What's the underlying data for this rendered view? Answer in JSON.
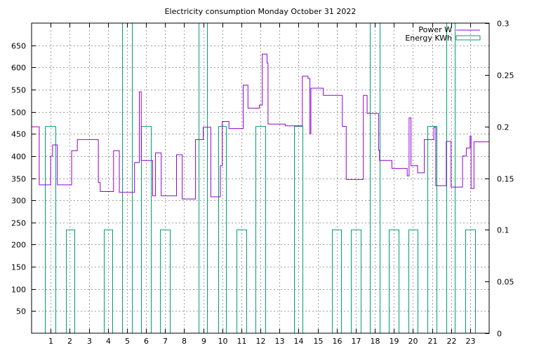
{
  "chart_data": {
    "type": "line",
    "title": "Electricity consumption Monday October 31 2022",
    "xlabel": "",
    "ylabel": "",
    "x_range": [
      0,
      24
    ],
    "x_ticks": [
      1,
      2,
      3,
      4,
      5,
      6,
      7,
      8,
      9,
      10,
      11,
      12,
      13,
      14,
      15,
      16,
      17,
      18,
      19,
      20,
      21,
      22,
      23
    ],
    "y_left_range": [
      0,
      700
    ],
    "y_left_ticks": [
      50,
      100,
      150,
      200,
      250,
      300,
      350,
      400,
      450,
      500,
      550,
      600,
      650
    ],
    "y_right_range": [
      0,
      0.3
    ],
    "y_right_ticks": [
      "0",
      "0.05",
      "0.1",
      "0.15",
      "0.2",
      "0.25",
      "0.3"
    ],
    "grid": true,
    "legend_position": "top-right",
    "series": [
      {
        "name": "Power W",
        "color": "#9400d3",
        "axis": "left",
        "points": [
          [
            0.0,
            466
          ],
          [
            0.4,
            466
          ],
          [
            0.4,
            335
          ],
          [
            1.0,
            335
          ],
          [
            1.0,
            400
          ],
          [
            1.1,
            400
          ],
          [
            1.1,
            425
          ],
          [
            1.35,
            425
          ],
          [
            1.35,
            335
          ],
          [
            2.1,
            335
          ],
          [
            2.1,
            412
          ],
          [
            2.4,
            412
          ],
          [
            2.4,
            437
          ],
          [
            3.5,
            437
          ],
          [
            3.5,
            340
          ],
          [
            3.6,
            340
          ],
          [
            3.6,
            320
          ],
          [
            4.3,
            320
          ],
          [
            4.3,
            412
          ],
          [
            4.6,
            412
          ],
          [
            4.6,
            318
          ],
          [
            5.4,
            318
          ],
          [
            5.4,
            385
          ],
          [
            5.65,
            385
          ],
          [
            5.65,
            545
          ],
          [
            5.75,
            545
          ],
          [
            5.75,
            390
          ],
          [
            6.35,
            390
          ],
          [
            6.35,
            310
          ],
          [
            6.5,
            310
          ],
          [
            6.5,
            407
          ],
          [
            6.8,
            407
          ],
          [
            6.8,
            310
          ],
          [
            7.6,
            310
          ],
          [
            7.6,
            403
          ],
          [
            7.9,
            403
          ],
          [
            7.9,
            303
          ],
          [
            8.6,
            303
          ],
          [
            8.6,
            437
          ],
          [
            9.0,
            437
          ],
          [
            9.0,
            465
          ],
          [
            9.4,
            465
          ],
          [
            9.4,
            308
          ],
          [
            9.9,
            308
          ],
          [
            9.9,
            378
          ],
          [
            10.0,
            378
          ],
          [
            10.0,
            478
          ],
          [
            10.35,
            478
          ],
          [
            10.35,
            462
          ],
          [
            11.1,
            462
          ],
          [
            11.1,
            560
          ],
          [
            11.35,
            560
          ],
          [
            11.35,
            508
          ],
          [
            11.95,
            508
          ],
          [
            11.95,
            515
          ],
          [
            12.1,
            515
          ],
          [
            12.1,
            630
          ],
          [
            12.35,
            630
          ],
          [
            12.35,
            610
          ],
          [
            12.4,
            610
          ],
          [
            12.4,
            472
          ],
          [
            13.3,
            472
          ],
          [
            13.3,
            468
          ],
          [
            14.2,
            468
          ],
          [
            14.2,
            580
          ],
          [
            14.5,
            580
          ],
          [
            14.5,
            575
          ],
          [
            14.6,
            575
          ],
          [
            14.6,
            450
          ],
          [
            14.65,
            450
          ],
          [
            14.65,
            553
          ],
          [
            15.3,
            553
          ],
          [
            15.3,
            537
          ],
          [
            16.3,
            537
          ],
          [
            16.3,
            467
          ],
          [
            16.5,
            467
          ],
          [
            16.5,
            347
          ],
          [
            17.4,
            347
          ],
          [
            17.4,
            537
          ],
          [
            17.6,
            537
          ],
          [
            17.6,
            496
          ],
          [
            18.2,
            496
          ],
          [
            18.2,
            413
          ],
          [
            18.25,
            413
          ],
          [
            18.25,
            390
          ],
          [
            18.9,
            390
          ],
          [
            18.9,
            372
          ],
          [
            19.7,
            372
          ],
          [
            19.7,
            355
          ],
          [
            19.8,
            355
          ],
          [
            19.8,
            486
          ],
          [
            19.9,
            486
          ],
          [
            19.9,
            378
          ],
          [
            20.25,
            378
          ],
          [
            20.25,
            362
          ],
          [
            20.6,
            362
          ],
          [
            20.6,
            437
          ],
          [
            21.1,
            437
          ],
          [
            21.1,
            465
          ],
          [
            21.2,
            465
          ],
          [
            21.2,
            333
          ],
          [
            21.75,
            333
          ],
          [
            21.75,
            433
          ],
          [
            22.0,
            433
          ],
          [
            22.0,
            330
          ],
          [
            22.6,
            330
          ],
          [
            22.6,
            400
          ],
          [
            22.8,
            400
          ],
          [
            22.8,
            418
          ],
          [
            23.0,
            418
          ],
          [
            23.0,
            445
          ],
          [
            23.05,
            445
          ],
          [
            23.05,
            327
          ],
          [
            23.2,
            327
          ],
          [
            23.2,
            432
          ],
          [
            24.0,
            432
          ]
        ]
      },
      {
        "name": "Energy KWh",
        "color": "#009e73",
        "axis": "right",
        "bars": [
          {
            "x0": 0.7,
            "x1": 1.25,
            "v": 0.2
          },
          {
            "x0": 1.8,
            "x1": 2.25,
            "v": 0.1
          },
          {
            "x0": 3.8,
            "x1": 4.25,
            "v": 0.1
          },
          {
            "x0": 4.75,
            "x1": 5.25,
            "v": 0.3
          },
          {
            "x0": 5.75,
            "x1": 6.25,
            "v": 0.2
          },
          {
            "x0": 6.75,
            "x1": 7.25,
            "v": 0.1
          },
          {
            "x0": 8.75,
            "x1": 9.2,
            "v": 0.3
          },
          {
            "x0": 9.8,
            "x1": 10.2,
            "v": 0.2
          },
          {
            "x0": 10.75,
            "x1": 11.25,
            "v": 0.1
          },
          {
            "x0": 11.75,
            "x1": 12.25,
            "v": 0.2
          },
          {
            "x0": 13.75,
            "x1": 14.2,
            "v": 0.2
          },
          {
            "x0": 15.75,
            "x1": 16.25,
            "v": 0.1
          },
          {
            "x0": 16.75,
            "x1": 17.25,
            "v": 0.1
          },
          {
            "x0": 17.75,
            "x1": 18.25,
            "v": 0.3
          },
          {
            "x0": 18.75,
            "x1": 19.25,
            "v": 0.1
          },
          {
            "x0": 19.75,
            "x1": 20.25,
            "v": 0.1
          },
          {
            "x0": 20.75,
            "x1": 21.25,
            "v": 0.2
          },
          {
            "x0": 21.75,
            "x1": 22.2,
            "v": 0.3
          },
          {
            "x0": 22.75,
            "x1": 23.25,
            "v": 0.1
          }
        ]
      }
    ]
  }
}
